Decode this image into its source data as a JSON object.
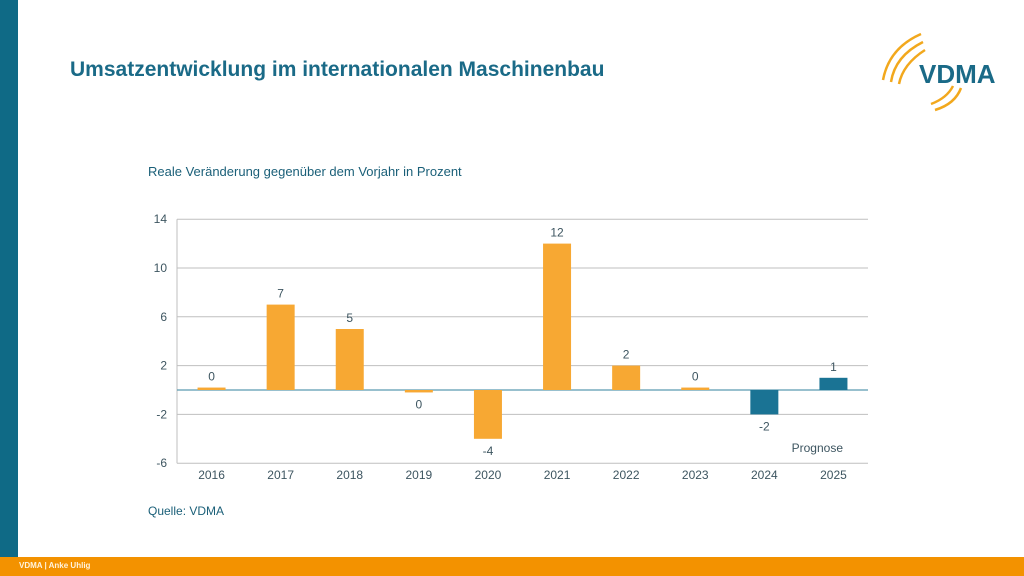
{
  "header": {
    "title": "Umsatzentwicklung im internationalen Maschinenbau",
    "logo_text": "VDMA"
  },
  "footer": {
    "text": "VDMA | Anke Uhlig"
  },
  "colors": {
    "accent_teal": "#0f6a86",
    "orange": "#f7a833",
    "forecast_blue": "#1a7394",
    "footer_orange": "#f39200"
  },
  "chart_data": {
    "type": "bar",
    "title": "",
    "subtitle": "Reale Veränderung gegenüber dem Vorjahr in Prozent",
    "categories": [
      "2016",
      "2017",
      "2018",
      "2019",
      "2020",
      "2021",
      "2022",
      "2023",
      "2024",
      "2025"
    ],
    "values": [
      0.2,
      7,
      5,
      -0.2,
      -4,
      12,
      2,
      0.2,
      -2,
      1
    ],
    "data_labels": [
      "0",
      "7",
      "5",
      "0",
      "-4",
      "12",
      "2",
      "0",
      "-2",
      "1"
    ],
    "forecast": [
      false,
      false,
      false,
      false,
      false,
      false,
      false,
      false,
      true,
      true
    ],
    "annotation": "Prognose",
    "yticks": [
      14,
      10,
      6,
      2,
      -2,
      -6
    ],
    "ylim": [
      -6,
      14
    ],
    "grid": true,
    "source": "Quelle: VDMA"
  }
}
